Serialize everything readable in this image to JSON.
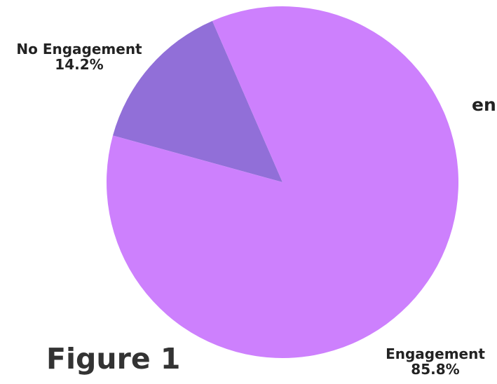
{
  "figure_caption": "Figure 1",
  "truncated_label": "en",
  "colors": {
    "engagement": "#cd80fd",
    "no_engagement": "#916fd8",
    "text": "#222222"
  },
  "chart_data": {
    "type": "pie",
    "title": "",
    "slices": [
      {
        "label": "No Engagement",
        "value": 14.2,
        "display": "14.2%",
        "color": "#916fd8"
      },
      {
        "label": "Engagement",
        "value": 85.8,
        "display": "85.8%",
        "color": "#cd80fd"
      }
    ],
    "start_angle_deg": -23.5,
    "direction": "counterclockwise"
  }
}
